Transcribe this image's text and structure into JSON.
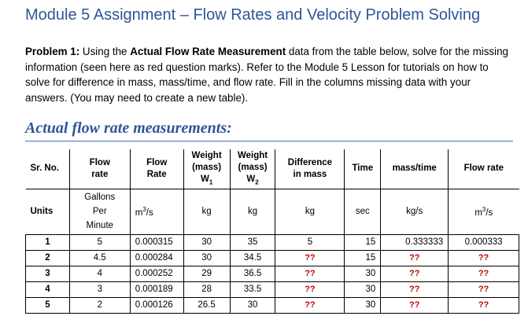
{
  "title": "Module 5 Assignment – Flow Rates and Velocity Problem Solving",
  "problem": {
    "label": "Problem 1:",
    "text_1": " Using the ",
    "bold_phrase": "Actual Flow Rate Measurement",
    "text_2": " data from the table below, solve for the missing information (seen here as red question marks). Refer to the Module 5 Lesson for tutorials on how to solve for difference in mass, mass/time, and flow rate.  Fill in the columns missing data with your answers. (You may need to create a new table)."
  },
  "subheading": "Actual flow rate measurements:",
  "table": {
    "headers": {
      "sr_no": "Sr. No.",
      "flow_rate_1_a": "Flow",
      "flow_rate_1_b": "rate",
      "flow_rate_2_a": "Flow",
      "flow_rate_2_b": "Rate",
      "w1_a": "Weight",
      "w1_b": "(mass)",
      "w1_c": "W",
      "w1_sub": "1",
      "w2_a": "Weight",
      "w2_b": "(mass)",
      "w2_c": "W",
      "w2_sub": "2",
      "diff_a": "Difference",
      "diff_b": "in mass",
      "time": "Time",
      "mass_time": "mass/time",
      "flow_rate": "Flow rate"
    },
    "units": {
      "label": "Units",
      "gallons_a": "Gallons",
      "gallons_b": "Per",
      "gallons_c": "Minute",
      "m3s_base": "m",
      "m3s_exp": "3",
      "m3s_tail": "/s",
      "kg_1": "kg",
      "kg_2": "kg",
      "kg_3": "kg",
      "sec": "sec",
      "kgs": "kg/s",
      "m3s2_base": "m",
      "m3s2_exp": "3",
      "m3s2_tail": "/s"
    },
    "rows": [
      {
        "sr": "1",
        "gpm": "5",
        "m3s": "0.000315",
        "w1": "30",
        "w2": "35",
        "diff": "5",
        "time": "15",
        "mass_time": "0.333333",
        "flow": "0.000333"
      },
      {
        "sr": "2",
        "gpm": "4.5",
        "m3s": "0.000284",
        "w1": "30",
        "w2": "34.5",
        "diff": "??",
        "time": "15",
        "mass_time": "??",
        "flow": "??"
      },
      {
        "sr": "3",
        "gpm": "4",
        "m3s": "0.000252",
        "w1": "29",
        "w2": "36.5",
        "diff": "??",
        "time": "30",
        "mass_time": "??",
        "flow": "??"
      },
      {
        "sr": "4",
        "gpm": "3",
        "m3s": "0.000189",
        "w1": "28",
        "w2": "33.5",
        "diff": "??",
        "time": "30",
        "mass_time": "??",
        "flow": "??"
      },
      {
        "sr": "5",
        "gpm": "2",
        "m3s": "0.000126",
        "w1": "26.5",
        "w2": "30",
        "diff": "??",
        "time": "30",
        "mass_time": "??",
        "flow": "??"
      }
    ],
    "colors": {
      "missing": "#c00000",
      "heading": "#2f5597"
    }
  }
}
